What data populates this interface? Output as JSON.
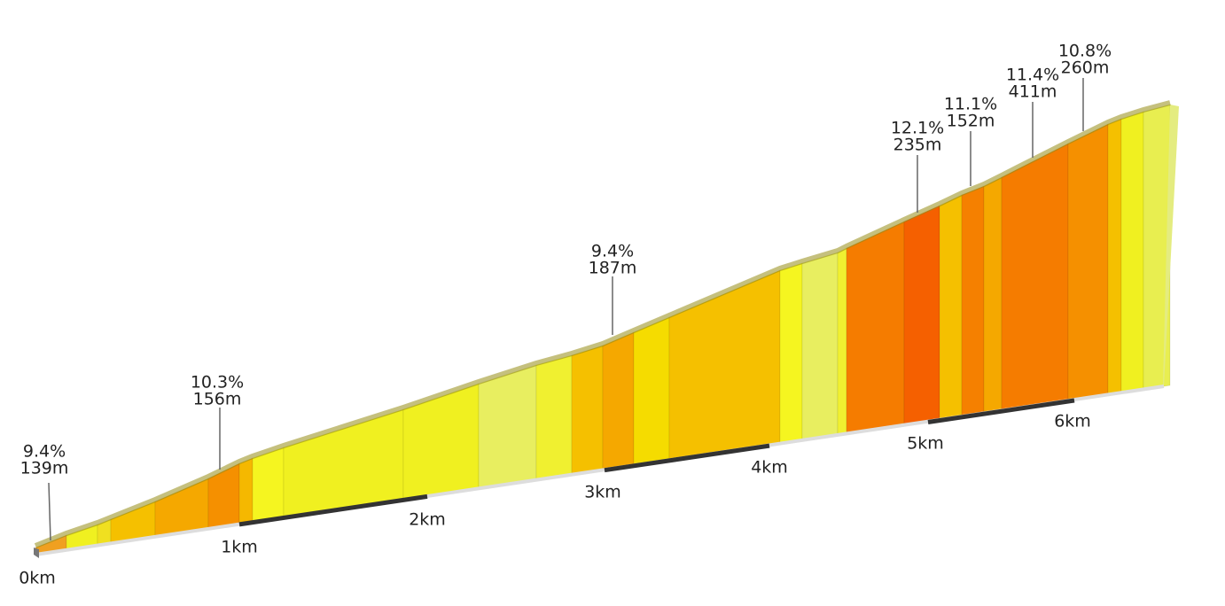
{
  "chart_data": {
    "type": "climb-profile",
    "xticks": [
      {
        "value": 0,
        "label": "0km"
      },
      {
        "value": 1,
        "label": "1km"
      },
      {
        "value": 2,
        "label": "2km"
      },
      {
        "value": 3,
        "label": "3km"
      },
      {
        "value": 4,
        "label": "4km"
      },
      {
        "value": 5,
        "label": "5km"
      },
      {
        "value": 6,
        "label": "6km"
      }
    ],
    "annotations": [
      {
        "grade": "9.4%",
        "length": "139m"
      },
      {
        "grade": "10.3%",
        "length": "156m"
      },
      {
        "grade": "9.4%",
        "length": "187m"
      },
      {
        "grade": "12.1%",
        "length": "235m"
      },
      {
        "grade": "11.1%",
        "length": "152m"
      },
      {
        "grade": "11.4%",
        "length": "411m"
      },
      {
        "grade": "10.8%",
        "length": "260m"
      }
    ]
  }
}
